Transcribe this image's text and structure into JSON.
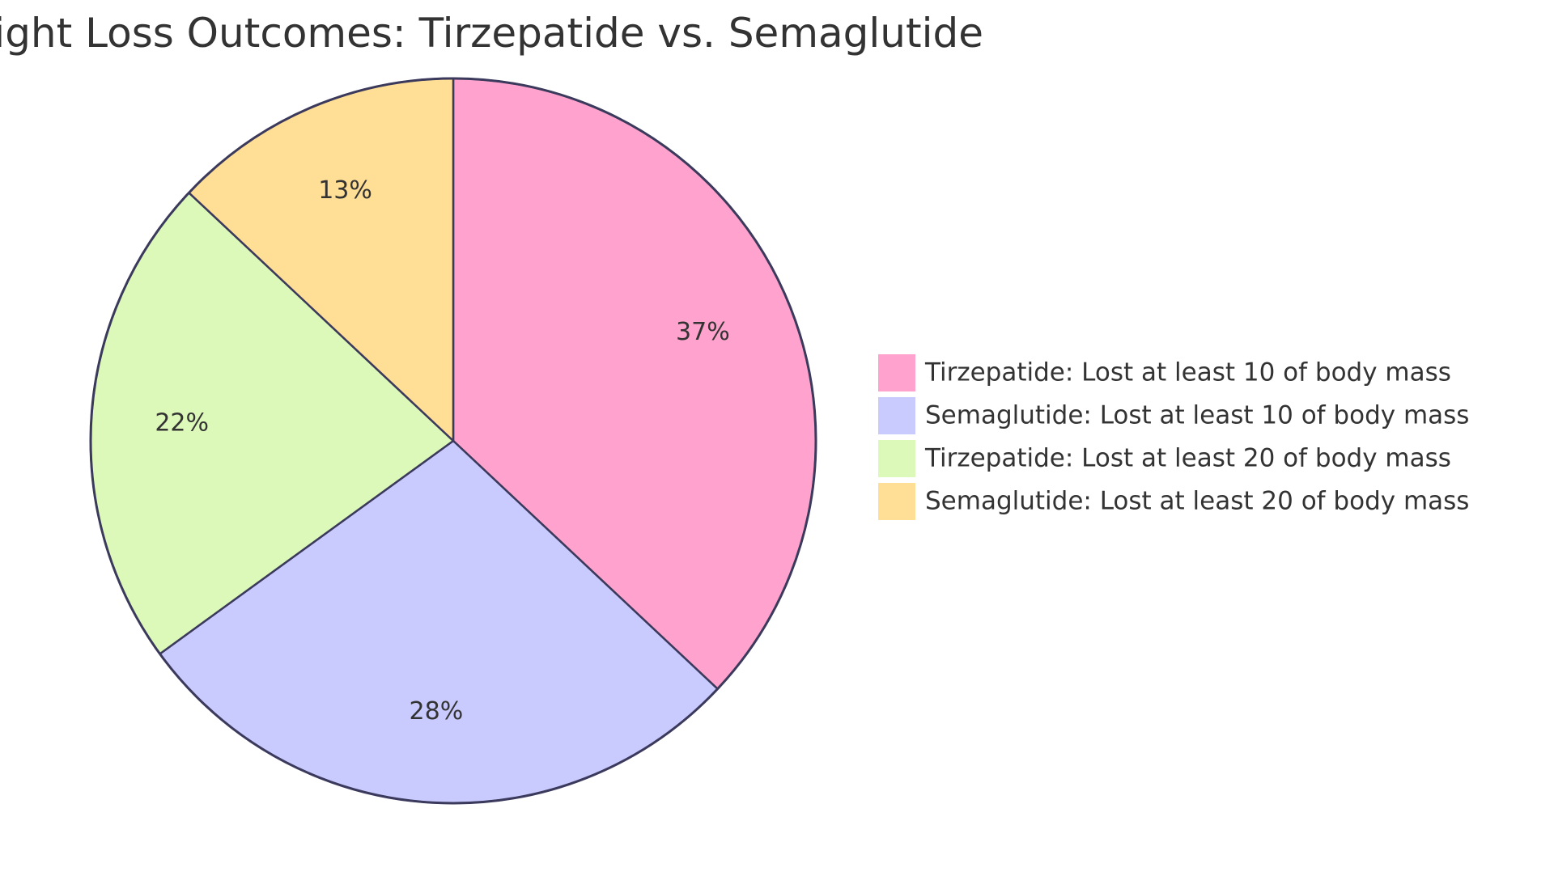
{
  "chart_data": {
    "type": "pie",
    "title": "Weight Loss Outcomes: Tirzepatide vs. Semaglutide",
    "slices": [
      {
        "label": "Tirzepatide: Lost at least 10 of body mass",
        "value": 37,
        "display": "37%",
        "color": "#FFA3CE"
      },
      {
        "label": "Semaglutide: Lost at least 10 of body mass",
        "value": 28,
        "display": "28%",
        "color": "#C9CBFF"
      },
      {
        "label": "Tirzepatide: Lost at least 20 of body mass",
        "value": 22,
        "display": "22%",
        "color": "#DCF9B9"
      },
      {
        "label": "Semaglutide: Lost at least 20 of body mass",
        "value": 13,
        "display": "13%",
        "color": "#FFDF96"
      }
    ],
    "legend_position": "right",
    "stroke_color": "#3B3A5C"
  }
}
